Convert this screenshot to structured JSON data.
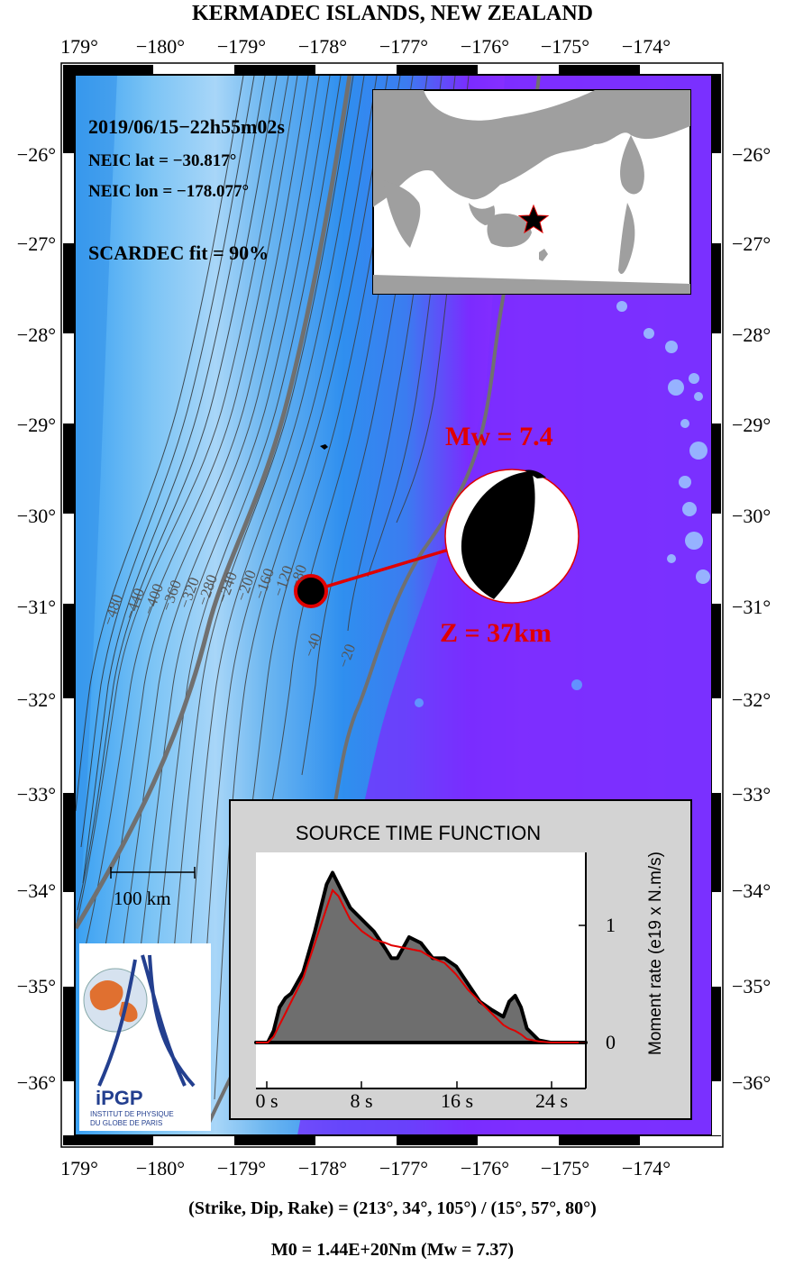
{
  "title": "KERMADEC ISLANDS, NEW ZEALAND",
  "lon_labels": [
    "179°",
    "−180°",
    "−179°",
    "−178°",
    "−177°",
    "−176°",
    "−175°",
    "−174°"
  ],
  "lat_labels": [
    "−26°",
    "−27°",
    "−28°",
    "−29°",
    "−30°",
    "−31°",
    "−32°",
    "−33°",
    "−34°",
    "−35°",
    "−36°"
  ],
  "event": {
    "datetime": "2019/06/15−22h55m02s",
    "neic_lat": "NEIC lat  = −30.817°",
    "neic_lon": "NEIC lon = −178.077°",
    "scardec_fit": "SCARDEC fit = 90%",
    "mw": "Mw = 7.4",
    "depth": "Z =  37km"
  },
  "contour_labels": [
    "−480",
    "−440",
    "−400",
    "−360",
    "−320",
    "−280",
    "−240",
    "−200",
    "−160",
    "−120",
    "−80",
    "−40",
    "−20"
  ],
  "scale_bar": "100 km",
  "stf": {
    "title": "SOURCE TIME FUNCTION",
    "x_ticks": [
      "0 s",
      "8 s",
      "16 s",
      "24 s"
    ],
    "y_ticks": [
      "1",
      "0"
    ],
    "ylabel": "Moment rate (e19 x N.m/s)"
  },
  "logo": {
    "name": "iPGP",
    "line1": "INSTITUT DE PHYSIQUE",
    "line2": "DU GLOBE DE PARIS"
  },
  "footer": {
    "planes": "(Strike, Dip, Rake) = (213°, 34°, 105°) / (15°, 57°, 80°)",
    "moment": "M0 = 1.44E+20Nm  (Mw = 7.37)"
  },
  "colors": {
    "deep_ocean": "#7b2bff",
    "slope": "#2f8fef",
    "trench": "#bfe0ff",
    "accent_red": "#e00000",
    "land_gray": "#a0a0a0"
  },
  "chart_data": {
    "type": "area",
    "x_unit": "s",
    "xlim": [
      -1,
      27
    ],
    "ylim": [
      0,
      1.6
    ],
    "x": [
      -1,
      0,
      0.5,
      1,
      1.5,
      2,
      3,
      4,
      5,
      5.5,
      6,
      7,
      8,
      9,
      10,
      10.5,
      11,
      12,
      13,
      14,
      15,
      16,
      17,
      18,
      19,
      20,
      20.5,
      21,
      21.5,
      22,
      23,
      24,
      25,
      26,
      27
    ],
    "series": [
      {
        "values": [
          0,
          0,
          0.1,
          0.3,
          0.38,
          0.42,
          0.6,
          0.95,
          1.35,
          1.45,
          1.35,
          1.15,
          1.05,
          0.95,
          0.8,
          0.72,
          0.72,
          0.9,
          0.85,
          0.72,
          0.72,
          0.65,
          0.5,
          0.35,
          0.28,
          0.22,
          0.35,
          0.4,
          0.3,
          0.12,
          0.02,
          0,
          0,
          0,
          0
        ]
      },
      {
        "values": [
          0,
          0,
          0.05,
          0.15,
          0.25,
          0.35,
          0.55,
          0.85,
          1.15,
          1.3,
          1.25,
          1.05,
          0.95,
          0.88,
          0.85,
          0.83,
          0.82,
          0.8,
          0.78,
          0.72,
          0.68,
          0.58,
          0.45,
          0.35,
          0.25,
          0.15,
          0.12,
          0.1,
          0.07,
          0.03,
          0.01,
          0,
          0,
          0,
          0
        ]
      }
    ]
  }
}
